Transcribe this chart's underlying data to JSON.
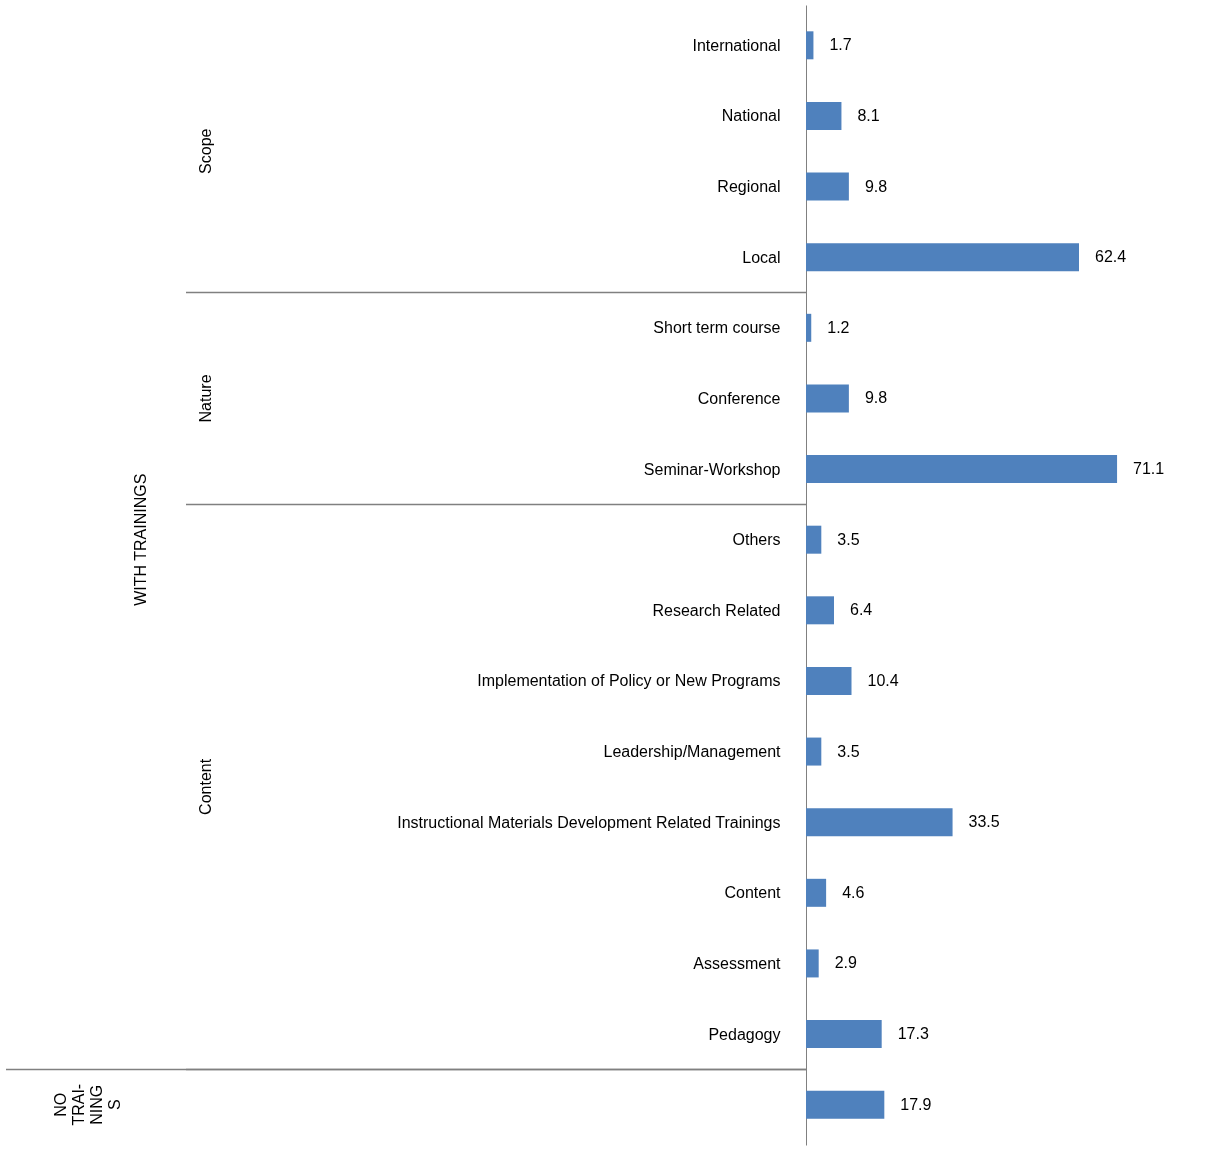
{
  "chart_data": {
    "type": "bar",
    "orientation": "horizontal",
    "data_labels": true,
    "categories": [
      "International",
      "National",
      "Regional",
      "Local",
      "Short term course",
      "Conference",
      "Seminar-Workshop",
      "Others",
      "Research Related",
      "Implementation of Policy or New Programs",
      "Leadership/Management",
      "Instructional Materials Development Related Trainings",
      "Content",
      "Assessment",
      "Pedagogy",
      null
    ],
    "values": [
      1.7,
      8.1,
      9.8,
      62.4,
      1.2,
      9.8,
      71.1,
      3.5,
      6.4,
      10.4,
      3.5,
      33.5,
      4.6,
      2.9,
      17.3,
      17.9
    ],
    "color": "#4f81bd",
    "annotations": [
      "Scope",
      "Nature",
      "Content",
      "WITH TRAININGS",
      "NO\nTRAI-\nNING\nS"
    ]
  }
}
